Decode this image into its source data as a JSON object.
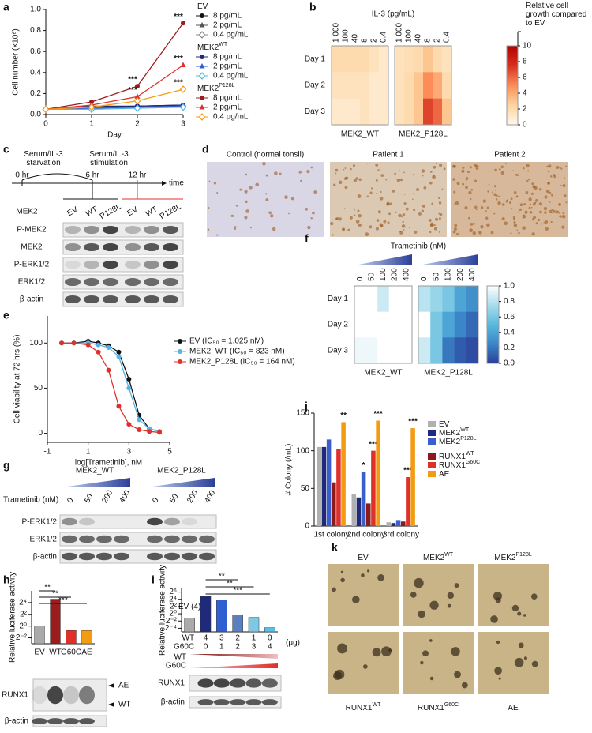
{
  "a": {
    "label": "a",
    "type": "line",
    "xlabel": "Day",
    "ylabel": "Cell number (×10⁶)",
    "x": [
      0,
      1,
      2,
      3
    ],
    "xlim": [
      0,
      3
    ],
    "xticks": [
      0,
      1,
      2,
      3
    ],
    "ylim": [
      0,
      1
    ],
    "yticks": [
      {
        "value": 0,
        "label": "0.0"
      },
      {
        "value": 0.2,
        "label": "0.2"
      },
      {
        "value": 0.4,
        "label": "0.4"
      },
      {
        "value": 0.6,
        "label": "0.6"
      },
      {
        "value": 0.8,
        "label": "0.8"
      },
      {
        "value": 1,
        "label": "1.0"
      }
    ],
    "groups": [
      {
        "name": "EV",
        "series": [
          {
            "name": "8 pg/mL",
            "color": "#111111",
            "marker": "circle",
            "values": [
              0.05,
              0.07,
              0.08,
              0.09
            ]
          },
          {
            "name": "2 pg/mL",
            "color": "#555555",
            "marker": "triangle",
            "values": [
              0.05,
              0.06,
              0.07,
              0.08
            ]
          },
          {
            "name": "0.4 pg/mL",
            "color": "#888888",
            "marker": "diamond",
            "values": [
              0.05,
              0.06,
              0.07,
              0.08
            ]
          }
        ]
      },
      {
        "name": "MEK2",
        "sup": "WT",
        "series": [
          {
            "name": "8 pg/mL",
            "color": "#1f2a7a",
            "marker": "circle",
            "values": [
              0.05,
              0.08,
              0.08,
              0.09
            ]
          },
          {
            "name": "2 pg/mL",
            "color": "#2f5fd0",
            "marker": "triangle",
            "values": [
              0.05,
              0.06,
              0.07,
              0.08
            ]
          },
          {
            "name": "0.4 pg/mL",
            "color": "#56b4e9",
            "marker": "diamond",
            "values": [
              0.05,
              0.05,
              0.06,
              0.07
            ]
          }
        ]
      },
      {
        "name": "MEK2",
        "sup": "P128L",
        "series": [
          {
            "name": "8 pg/mL",
            "color": "#9b1c1c",
            "marker": "circle",
            "values": [
              0.05,
              0.12,
              0.27,
              0.87
            ],
            "significance": [
              null,
              null,
              "***",
              "***"
            ]
          },
          {
            "name": "2 pg/mL",
            "color": "#e0302a",
            "marker": "triangle",
            "values": [
              0.05,
              0.09,
              0.17,
              0.47
            ],
            "significance": [
              null,
              null,
              "***",
              "***"
            ]
          },
          {
            "name": "0.4 pg/mL",
            "color": "#f39c12",
            "marker": "diamond",
            "values": [
              0.05,
              0.07,
              0.13,
              0.24
            ],
            "significance": [
              null,
              null,
              null,
              "***"
            ]
          }
        ]
      }
    ]
  },
  "b": {
    "label": "b",
    "title": "IL-3 (pg/mL)",
    "columns": [
      "1 000",
      "100",
      "40",
      "8",
      "2",
      "0.4"
    ],
    "rows": [
      "Day 1",
      "Day 2",
      "Day 3"
    ],
    "maps": [
      {
        "name": "MEK2_WT",
        "values": [
          [
            2,
            2,
            2,
            2,
            1.5,
            1
          ],
          [
            1.5,
            1.5,
            1.5,
            1.5,
            1,
            1
          ],
          [
            1,
            1,
            1,
            1.5,
            1,
            1
          ]
        ]
      },
      {
        "name": "MEK2_P128L",
        "values": [
          [
            1.5,
            1.8,
            2,
            3,
            2,
            1.5
          ],
          [
            1.5,
            2,
            3,
            5,
            4,
            2
          ],
          [
            1.5,
            2,
            3,
            7,
            6,
            3
          ]
        ]
      }
    ],
    "colorbar": {
      "title": "Relative cell growth compared to EV",
      "lim": [
        0,
        10
      ],
      "ticks": [
        0,
        2,
        4,
        6,
        8,
        10
      ],
      "colors": [
        "#fff7ec",
        "#fdd49e",
        "#fc8d59",
        "#d7301f",
        "#b30000"
      ]
    }
  },
  "c": {
    "label": "c",
    "timeline": {
      "times": [
        "0 hr",
        "6 hr",
        "12 hr"
      ],
      "axis": "time",
      "phases": [
        "Serum/IL-3 starvation",
        "Serum/IL-3 stimulation"
      ]
    },
    "blot": {
      "protein": "MEK2",
      "lanes": [
        "EV",
        "WT",
        "P128L",
        "EV",
        "WT",
        "P128L"
      ],
      "rows": [
        "P-MEK2",
        "MEK2",
        "P-ERK1/2",
        "ERK1/2",
        "β-actin"
      ]
    }
  },
  "d": {
    "label": "d",
    "titles": [
      "Control (normal tonsil)",
      "Patient 1",
      "Patient 2"
    ]
  },
  "e": {
    "label": "e",
    "type": "line",
    "xlabel": "log[Trametinib], nM",
    "ylabel": "Cell viability at 72 hrs (%)",
    "x": [
      -0.3,
      0.3,
      1,
      1.5,
      2,
      2.5,
      3,
      3.5,
      4,
      4.5
    ],
    "xlim": [
      -1,
      5
    ],
    "xticks": [
      -1,
      1,
      3,
      5
    ],
    "ylim": [
      -10,
      130
    ],
    "yticks": [
      0,
      50,
      100
    ],
    "series": [
      {
        "name": "EV (IC₅₀ = 1,025 nM)",
        "color": "#111111",
        "values": [
          100,
          100,
          102,
          100,
          97,
          90,
          60,
          20,
          5,
          2
        ]
      },
      {
        "name": "MEK2_WT (IC₅₀ = 823 nM)",
        "color": "#56b4e9",
        "values": [
          100,
          100,
          100,
          98,
          95,
          85,
          50,
          15,
          5,
          2
        ]
      },
      {
        "name": "MEK2_P128L (IC₅₀ = 164 nM)",
        "color": "#e0302a",
        "values": [
          100,
          100,
          98,
          90,
          70,
          30,
          10,
          4,
          2,
          1
        ]
      }
    ]
  },
  "f": {
    "label": "f",
    "title": "Trametinib (nM)",
    "columns": [
      "0",
      "50",
      "100",
      "200",
      "400"
    ],
    "rows": [
      "Day 1",
      "Day 2",
      "Day 3"
    ],
    "maps": [
      {
        "name": "MEK2_WT",
        "values": [
          [
            1,
            1,
            0.85,
            1,
            1
          ],
          [
            1,
            1,
            1,
            1,
            1
          ],
          [
            0.95,
            0.95,
            1,
            1,
            1
          ]
        ]
      },
      {
        "name": "MEK2_P128L",
        "values": [
          [
            0.8,
            0.7,
            0.6,
            0.4,
            0.3
          ],
          [
            1,
            0.6,
            0.4,
            0.25,
            0.15
          ],
          [
            0.85,
            0.6,
            0.2,
            0.1,
            0.05
          ]
        ]
      }
    ],
    "colorbar": {
      "lim": [
        0,
        1
      ],
      "ticks": [
        {
          "value": 0,
          "label": "0.0"
        },
        {
          "value": 0.2,
          "label": "0.2"
        },
        {
          "value": 0.4,
          "label": "0.4"
        },
        {
          "value": 0.6,
          "label": "0.6"
        },
        {
          "value": 0.8,
          "label": "0.8"
        },
        {
          "value": 1,
          "label": "1.0"
        }
      ],
      "colors": [
        "#2b3f99",
        "#3a86c8",
        "#59b9dd",
        "#a8dcec",
        "#ffffff"
      ]
    }
  },
  "g": {
    "label": "g",
    "blot": {
      "groups": [
        "MEK2_WT",
        "MEK2_P128L"
      ],
      "treatment": "Trametinib (nM)",
      "lanes": [
        "0",
        "50",
        "200",
        "400",
        "0",
        "50",
        "200",
        "400"
      ],
      "rows": [
        "P-ERK1/2",
        "ERK1/2",
        "β-actin"
      ]
    }
  },
  "h": {
    "label": "h",
    "type": "bar",
    "ylabel": "Relative luciferase activity",
    "log_base": 2,
    "categories": [
      "EV",
      "WT",
      "G60C",
      "AE"
    ],
    "colors": [
      "#aaaaaa",
      "#9b1c1c",
      "#e0302a",
      "#f39c12"
    ],
    "values": [
      1,
      24,
      0.6,
      0.6
    ],
    "ylim": [
      0.125,
      64
    ],
    "yticks": [
      {
        "value": 0.25,
        "label": "2⁻²"
      },
      {
        "value": 1,
        "label": "2⁰"
      },
      {
        "value": 4,
        "label": "2²"
      },
      {
        "value": 16,
        "label": "2⁴"
      }
    ],
    "comparisons": [
      "**",
      "**",
      "***"
    ],
    "blot": {
      "rows": [
        "RUNX1",
        "β-actin"
      ],
      "bands": [
        "AE",
        "WT"
      ]
    }
  },
  "i": {
    "label": "i",
    "type": "bar",
    "ylabel": "Relative luciferase activity",
    "log_base": 2,
    "values": [
      0.45,
      28,
      14,
      0.8,
      0.5,
      0.07
    ],
    "colors": [
      "#aaaaaa",
      "#1f2a7a",
      "#2f5fd0",
      "#5b7fc0",
      "#7ec8e3",
      "#56c0e9"
    ],
    "bar_label": "EV (4)",
    "amount_rows": [
      {
        "name": "WT",
        "amounts": [
          "4",
          "3",
          "2",
          "1",
          "0"
        ]
      },
      {
        "name": "G60C",
        "amounts": [
          "0",
          "1",
          "2",
          "3",
          "4"
        ]
      }
    ],
    "unit": "(μg)",
    "ylim": [
      0.03125,
      128
    ],
    "yticks": [
      {
        "value": 0.0625,
        "label": "2⁻⁴"
      },
      {
        "value": 0.25,
        "label": "2⁻²"
      },
      {
        "value": 1,
        "label": "2⁰"
      },
      {
        "value": 4,
        "label": "2²"
      },
      {
        "value": 16,
        "label": "2⁴"
      },
      {
        "value": 64,
        "label": "2⁶"
      }
    ],
    "comparisons": [
      "**",
      "**",
      "***"
    ],
    "gradient_labels": [
      "WT",
      "G60C"
    ],
    "blot": {
      "rows": [
        "RUNX1",
        "β-actin"
      ]
    }
  },
  "j": {
    "label": "j",
    "type": "bar",
    "ylabel": "# Colony (/mL)",
    "categories": [
      "1st colony",
      "2nd colony",
      "3rd colony"
    ],
    "ylim": [
      0,
      150
    ],
    "yticks": [
      0,
      50,
      100,
      150
    ],
    "series": [
      {
        "name": "EV",
        "color": "#b0b0b0",
        "values": [
          105,
          42,
          5
        ]
      },
      {
        "name": "MEK2",
        "sup": "WT",
        "color": "#1f2a7a",
        "values": [
          105,
          38,
          4
        ]
      },
      {
        "name": "MEK2",
        "sup": "P128L",
        "color": "#3a5fcd",
        "values": [
          115,
          72,
          8
        ],
        "significance": [
          null,
          "*",
          null
        ]
      },
      {
        "name": "RUNX1",
        "sup": "WT",
        "color": "#8b1a1a",
        "values": [
          58,
          30,
          6
        ]
      },
      {
        "name": "RUNX1",
        "sup": "G60C",
        "color": "#e0302a",
        "values": [
          102,
          100,
          65
        ],
        "significance": [
          null,
          "***",
          "***"
        ]
      },
      {
        "name": "AE",
        "color": "#f39c12",
        "values": [
          138,
          140,
          130
        ],
        "significance": [
          "**",
          "***",
          "***"
        ]
      }
    ]
  },
  "k": {
    "label": "k",
    "top": [
      {
        "name": "EV"
      },
      {
        "name": "MEK2",
        "sup": "WT"
      },
      {
        "name": "MEK2",
        "sup": "P128L"
      }
    ],
    "bottom": [
      {
        "name": "RUNX1",
        "sup": "WT"
      },
      {
        "name": "RUNX1",
        "sup": "G60C"
      },
      {
        "name": "AE"
      }
    ]
  }
}
